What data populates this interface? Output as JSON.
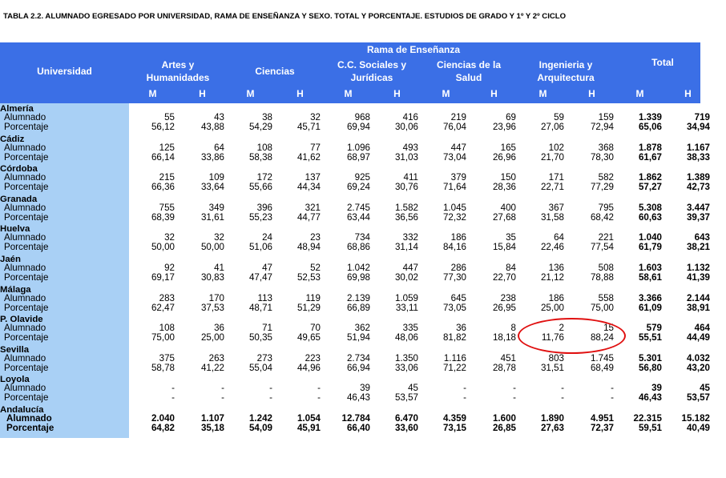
{
  "title": "TABLA 2.2. ALUMNADO EGRESADO POR  UNIVERSIDAD, RAMA DE ENSEÑANZA Y SEXO. TOTAL Y PORCENTAJE. ESTUDIOS DE GRADO Y 1º Y 2º CICLO",
  "header": {
    "universidad": "Universidad",
    "rama": "Rama de Enseñanza",
    "groups": [
      {
        "line1": "Artes y",
        "line2": "Humanidades"
      },
      {
        "line1": "Ciencias",
        "line2": ""
      },
      {
        "line1": "C.C. Sociales y",
        "line2": "Jurídicas"
      },
      {
        "line1": "Ciencias de la",
        "line2": "Salud"
      },
      {
        "line1": "Ingenieria y",
        "line2": "Arquitectura"
      },
      {
        "line1": "Total",
        "line2": ""
      }
    ],
    "subcols": [
      "M",
      "H",
      "M",
      "H",
      "M",
      "H",
      "M",
      "H",
      "M",
      "H",
      "M",
      "H"
    ]
  },
  "row_labels": {
    "alumnado": "Alumnado",
    "porcentaje": "Porcentaje"
  },
  "rows": [
    {
      "name": "Almería",
      "alumnado": [
        "55",
        "43",
        "38",
        "32",
        "968",
        "416",
        "219",
        "69",
        "59",
        "159",
        "1.339",
        "719"
      ],
      "porcentaje": [
        "56,12",
        "43,88",
        "54,29",
        "45,71",
        "69,94",
        "30,06",
        "76,04",
        "23,96",
        "27,06",
        "72,94",
        "65,06",
        "34,94"
      ]
    },
    {
      "name": "Cádiz",
      "alumnado": [
        "125",
        "64",
        "108",
        "77",
        "1.096",
        "493",
        "447",
        "165",
        "102",
        "368",
        "1.878",
        "1.167"
      ],
      "porcentaje": [
        "66,14",
        "33,86",
        "58,38",
        "41,62",
        "68,97",
        "31,03",
        "73,04",
        "26,96",
        "21,70",
        "78,30",
        "61,67",
        "38,33"
      ]
    },
    {
      "name": "Córdoba",
      "alumnado": [
        "215",
        "109",
        "172",
        "137",
        "925",
        "411",
        "379",
        "150",
        "171",
        "582",
        "1.862",
        "1.389"
      ],
      "porcentaje": [
        "66,36",
        "33,64",
        "55,66",
        "44,34",
        "69,24",
        "30,76",
        "71,64",
        "28,36",
        "22,71",
        "77,29",
        "57,27",
        "42,73"
      ]
    },
    {
      "name": "Granada",
      "alumnado": [
        "755",
        "349",
        "396",
        "321",
        "2.745",
        "1.582",
        "1.045",
        "400",
        "367",
        "795",
        "5.308",
        "3.447"
      ],
      "porcentaje": [
        "68,39",
        "31,61",
        "55,23",
        "44,77",
        "63,44",
        "36,56",
        "72,32",
        "27,68",
        "31,58",
        "68,42",
        "60,63",
        "39,37"
      ]
    },
    {
      "name": "Huelva",
      "alumnado": [
        "32",
        "32",
        "24",
        "23",
        "734",
        "332",
        "186",
        "35",
        "64",
        "221",
        "1.040",
        "643"
      ],
      "porcentaje": [
        "50,00",
        "50,00",
        "51,06",
        "48,94",
        "68,86",
        "31,14",
        "84,16",
        "15,84",
        "22,46",
        "77,54",
        "61,79",
        "38,21"
      ]
    },
    {
      "name": "Jaén",
      "alumnado": [
        "92",
        "41",
        "47",
        "52",
        "1.042",
        "447",
        "286",
        "84",
        "136",
        "508",
        "1.603",
        "1.132"
      ],
      "porcentaje": [
        "69,17",
        "30,83",
        "47,47",
        "52,53",
        "69,98",
        "30,02",
        "77,30",
        "22,70",
        "21,12",
        "78,88",
        "58,61",
        "41,39"
      ]
    },
    {
      "name": "Málaga",
      "alumnado": [
        "283",
        "170",
        "113",
        "119",
        "2.139",
        "1.059",
        "645",
        "238",
        "186",
        "558",
        "3.366",
        "2.144"
      ],
      "porcentaje": [
        "62,47",
        "37,53",
        "48,71",
        "51,29",
        "66,89",
        "33,11",
        "73,05",
        "26,95",
        "25,00",
        "75,00",
        "61,09",
        "38,91"
      ]
    },
    {
      "name": "P. Olavide",
      "alumnado": [
        "108",
        "36",
        "71",
        "70",
        "362",
        "335",
        "36",
        "8",
        "2",
        "15",
        "579",
        "464"
      ],
      "porcentaje": [
        "75,00",
        "25,00",
        "50,35",
        "49,65",
        "51,94",
        "48,06",
        "81,82",
        "18,18",
        "11,76",
        "88,24",
        "55,51",
        "44,49"
      ]
    },
    {
      "name": "Sevilla",
      "alumnado": [
        "375",
        "263",
        "273",
        "223",
        "2.734",
        "1.350",
        "1.116",
        "451",
        "803",
        "1.745",
        "5.301",
        "4.032"
      ],
      "porcentaje": [
        "58,78",
        "41,22",
        "55,04",
        "44,96",
        "66,94",
        "33,06",
        "71,22",
        "28,78",
        "31,51",
        "68,49",
        "56,80",
        "43,20"
      ]
    },
    {
      "name": "Loyola",
      "alumnado": [
        "-",
        "-",
        "-",
        "-",
        "39",
        "45",
        "-",
        "-",
        "-",
        "-",
        "39",
        "45"
      ],
      "porcentaje": [
        "-",
        "-",
        "-",
        "-",
        "46,43",
        "53,57",
        "-",
        "-",
        "-",
        "-",
        "46,43",
        "53,57"
      ]
    },
    {
      "name": "Andalucía",
      "alumnado": [
        "2.040",
        "1.107",
        "1.242",
        "1.054",
        "12.784",
        "6.470",
        "4.359",
        "1.600",
        "1.890",
        "4.951",
        "22.315",
        "15.182"
      ],
      "porcentaje": [
        "64,82",
        "35,18",
        "54,09",
        "45,91",
        "66,40",
        "33,60",
        "73,15",
        "26,85",
        "27,63",
        "72,37",
        "59,51",
        "40,49"
      ],
      "total_row": true
    }
  ],
  "colors": {
    "header_blue": "#3b6fe6",
    "sidebar_blue": "#a9d0f5",
    "highlight_red": "#e01010"
  }
}
